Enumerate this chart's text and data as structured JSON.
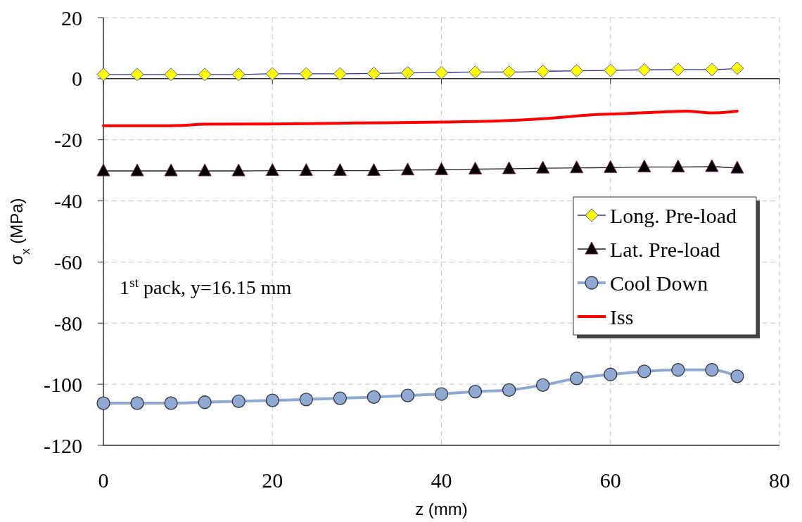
{
  "chart_data": {
    "type": "line",
    "xlabel": "z (mm)",
    "ylabel": "σ$_{x}$ (MPa)",
    "xlim": [
      0,
      80
    ],
    "xticks": [
      0,
      20,
      40,
      60,
      80
    ],
    "ylim": [
      -120,
      20
    ],
    "yticks": [
      -120,
      -100,
      -80,
      -60,
      -40,
      -20,
      0,
      20
    ],
    "grid": true,
    "legend": "right",
    "annotations": [
      "1$^{st}$ pack, y=16.15 mm"
    ],
    "x": [
      0,
      4,
      8,
      12,
      16,
      20,
      24,
      28,
      32,
      36,
      40,
      44,
      48,
      52,
      56,
      60,
      64,
      68,
      72,
      75
    ],
    "series": [
      {
        "name": "Long. Pre-load",
        "color": "#ffff00",
        "marker": "diamond",
        "values": [
          1.4,
          1.4,
          1.4,
          1.4,
          1.4,
          1.6,
          1.6,
          1.6,
          1.7,
          1.9,
          2.0,
          2.2,
          2.2,
          2.4,
          2.6,
          2.7,
          2.9,
          3.0,
          3.0,
          3.4
        ]
      },
      {
        "name": "Lat. Pre-load",
        "color": "#000000",
        "marker": "triangle",
        "values": [
          -30.2,
          -30.2,
          -30.2,
          -30.2,
          -30.2,
          -30.1,
          -30.1,
          -30.1,
          -30.1,
          -29.9,
          -29.8,
          -29.6,
          -29.5,
          -29.3,
          -29.2,
          -29.1,
          -28.9,
          -28.9,
          -28.8,
          -29.3
        ]
      },
      {
        "name": "Cool Down",
        "color": "#8fa8d4",
        "marker": "circle",
        "values": [
          -106.2,
          -106.2,
          -106.2,
          -105.9,
          -105.6,
          -105.3,
          -105.0,
          -104.6,
          -104.2,
          -103.7,
          -103.2,
          -102.4,
          -101.9,
          -100.3,
          -98.1,
          -96.8,
          -95.8,
          -95.3,
          -95.3,
          -97.4
        ]
      },
      {
        "name": "Iss",
        "color": "#ff0000",
        "marker": "none",
        "x": [
          0,
          8,
          12,
          20,
          30,
          40,
          47,
          53,
          58,
          62,
          66,
          69,
          72,
          75
        ],
        "values": [
          -15.4,
          -15.4,
          -14.9,
          -14.8,
          -14.5,
          -14.2,
          -13.8,
          -12.9,
          -11.8,
          -11.4,
          -10.9,
          -10.6,
          -11.2,
          -10.6
        ]
      }
    ]
  }
}
